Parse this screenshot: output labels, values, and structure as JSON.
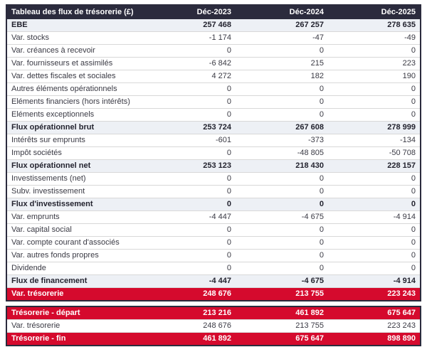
{
  "title": "Tableau des flux de trésorerie (£)",
  "columns": [
    "Déc-2023",
    "Déc-2024",
    "Déc-2025"
  ],
  "colors": {
    "header_bg": "#2b2b3d",
    "header_text": "#ffffff",
    "section_row_bg": "#edf0f5",
    "red_row_bg": "#d50a2d",
    "red_row_text": "#ffffff",
    "row_border": "#d8d8d8",
    "body_text": "#3a3a44"
  },
  "main_table": {
    "rows": [
      {
        "label": "EBE",
        "values": [
          "257 468",
          "267 257",
          "278 635"
        ],
        "style": "section"
      },
      {
        "label": "Var. stocks",
        "values": [
          "-1 174",
          "-47",
          "-49"
        ],
        "style": "normal"
      },
      {
        "label": "Var. créances à recevoir",
        "values": [
          "0",
          "0",
          "0"
        ],
        "style": "normal"
      },
      {
        "label": "Var. fournisseurs et assimilés",
        "values": [
          "-6 842",
          "215",
          "223"
        ],
        "style": "normal"
      },
      {
        "label": "Var. dettes fiscales et sociales",
        "values": [
          "4 272",
          "182",
          "190"
        ],
        "style": "normal"
      },
      {
        "label": "Autres éléments opérationnels",
        "values": [
          "0",
          "0",
          "0"
        ],
        "style": "normal"
      },
      {
        "label": "Eléments financiers (hors intérêts)",
        "values": [
          "0",
          "0",
          "0"
        ],
        "style": "normal"
      },
      {
        "label": "Eléments exceptionnels",
        "values": [
          "0",
          "0",
          "0"
        ],
        "style": "normal"
      },
      {
        "label": "Flux opérationnel brut",
        "values": [
          "253 724",
          "267 608",
          "278 999"
        ],
        "style": "section"
      },
      {
        "label": "Intérêts sur emprunts",
        "values": [
          "-601",
          "-373",
          "-134"
        ],
        "style": "normal"
      },
      {
        "label": "Impôt sociétés",
        "values": [
          "0",
          "-48 805",
          "-50 708"
        ],
        "style": "normal"
      },
      {
        "label": "Flux opérationnel net",
        "values": [
          "253 123",
          "218 430",
          "228 157"
        ],
        "style": "section"
      },
      {
        "label": "Investissements (net)",
        "values": [
          "0",
          "0",
          "0"
        ],
        "style": "normal"
      },
      {
        "label": "Subv. investissement",
        "values": [
          "0",
          "0",
          "0"
        ],
        "style": "normal"
      },
      {
        "label": "Flux d'investissement",
        "values": [
          "0",
          "0",
          "0"
        ],
        "style": "section"
      },
      {
        "label": "Var. emprunts",
        "values": [
          "-4 447",
          "-4 675",
          "-4 914"
        ],
        "style": "normal"
      },
      {
        "label": "Var. capital social",
        "values": [
          "0",
          "0",
          "0"
        ],
        "style": "normal"
      },
      {
        "label": "Var. compte courant d'associés",
        "values": [
          "0",
          "0",
          "0"
        ],
        "style": "normal"
      },
      {
        "label": "Var. autres fonds propres",
        "values": [
          "0",
          "0",
          "0"
        ],
        "style": "normal"
      },
      {
        "label": "Dividende",
        "values": [
          "0",
          "0",
          "0"
        ],
        "style": "normal"
      },
      {
        "label": "Flux de financement",
        "values": [
          "-4 447",
          "-4 675",
          "-4 914"
        ],
        "style": "section"
      },
      {
        "label": "Var. trésorerie",
        "values": [
          "248 676",
          "213 755",
          "223 243"
        ],
        "style": "red"
      }
    ]
  },
  "summary_table": {
    "rows": [
      {
        "label": "Trésorerie - départ",
        "values": [
          "213 216",
          "461 892",
          "675 647"
        ],
        "style": "red"
      },
      {
        "label": "Var. trésorerie",
        "values": [
          "248 676",
          "213 755",
          "223 243"
        ],
        "style": "normal"
      },
      {
        "label": "Trésorerie - fin",
        "values": [
          "461 892",
          "675 647",
          "898 890"
        ],
        "style": "red"
      }
    ]
  },
  "chart_data": {
    "type": "table",
    "title": "Tableau des flux de trésorerie (£)",
    "columns": [
      "Déc-2023",
      "Déc-2024",
      "Déc-2025"
    ],
    "rows": [
      {
        "label": "EBE",
        "values": [
          257468,
          267257,
          278635
        ]
      },
      {
        "label": "Var. stocks",
        "values": [
          -1174,
          -47,
          -49
        ]
      },
      {
        "label": "Var. créances à recevoir",
        "values": [
          0,
          0,
          0
        ]
      },
      {
        "label": "Var. fournisseurs et assimilés",
        "values": [
          -6842,
          215,
          223
        ]
      },
      {
        "label": "Var. dettes fiscales et sociales",
        "values": [
          4272,
          182,
          190
        ]
      },
      {
        "label": "Autres éléments opérationnels",
        "values": [
          0,
          0,
          0
        ]
      },
      {
        "label": "Eléments financiers (hors intérêts)",
        "values": [
          0,
          0,
          0
        ]
      },
      {
        "label": "Eléments exceptionnels",
        "values": [
          0,
          0,
          0
        ]
      },
      {
        "label": "Flux opérationnel brut",
        "values": [
          253724,
          267608,
          278999
        ]
      },
      {
        "label": "Intérêts sur emprunts",
        "values": [
          -601,
          -373,
          -134
        ]
      },
      {
        "label": "Impôt sociétés",
        "values": [
          0,
          -48805,
          -50708
        ]
      },
      {
        "label": "Flux opérationnel net",
        "values": [
          253123,
          218430,
          228157
        ]
      },
      {
        "label": "Investissements (net)",
        "values": [
          0,
          0,
          0
        ]
      },
      {
        "label": "Subv. investissement",
        "values": [
          0,
          0,
          0
        ]
      },
      {
        "label": "Flux d'investissement",
        "values": [
          0,
          0,
          0
        ]
      },
      {
        "label": "Var. emprunts",
        "values": [
          -4447,
          -4675,
          -4914
        ]
      },
      {
        "label": "Var. capital social",
        "values": [
          0,
          0,
          0
        ]
      },
      {
        "label": "Var. compte courant d'associés",
        "values": [
          0,
          0,
          0
        ]
      },
      {
        "label": "Var. autres fonds propres",
        "values": [
          0,
          0,
          0
        ]
      },
      {
        "label": "Dividende",
        "values": [
          0,
          0,
          0
        ]
      },
      {
        "label": "Flux de financement",
        "values": [
          -4447,
          -4675,
          -4914
        ]
      },
      {
        "label": "Var. trésorerie",
        "values": [
          248676,
          213755,
          223243
        ]
      },
      {
        "label": "Trésorerie - départ",
        "values": [
          213216,
          461892,
          675647
        ]
      },
      {
        "label": "Var. trésorerie",
        "values": [
          248676,
          213755,
          223243
        ]
      },
      {
        "label": "Trésorerie - fin",
        "values": [
          461892,
          675647,
          898890
        ]
      }
    ]
  }
}
